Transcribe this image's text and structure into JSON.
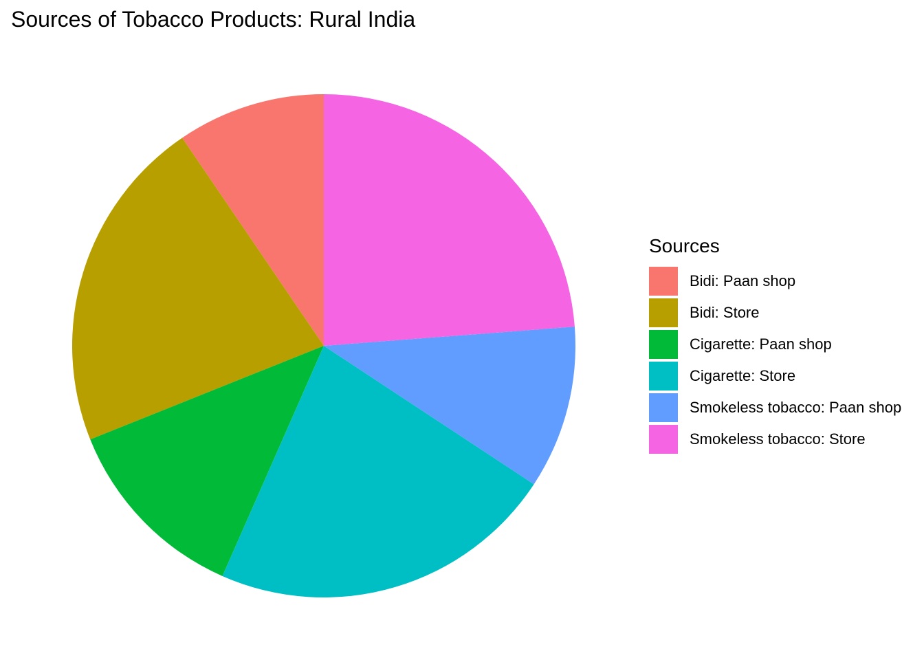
{
  "chart_data": {
    "type": "pie",
    "title": "Sources of Tobacco Products: Rural India",
    "legend_title": "Sources",
    "legend_position": "right",
    "categories": [
      "Bidi: Paan shop",
      "Bidi: Store",
      "Cigarette: Paan shop",
      "Cigarette: Store",
      "Smokeless tobacco: Paan shop",
      "Smokeless tobacco: Store"
    ],
    "values": [
      9.8,
      22.2,
      12.7,
      23.0,
      10.8,
      24.5
    ],
    "colors": [
      "#F8766D",
      "#B79F00",
      "#00BA38",
      "#00BFC4",
      "#619CFF",
      "#F564E3"
    ],
    "start_angle": "12 o'clock",
    "direction": "counter-clockwise"
  }
}
